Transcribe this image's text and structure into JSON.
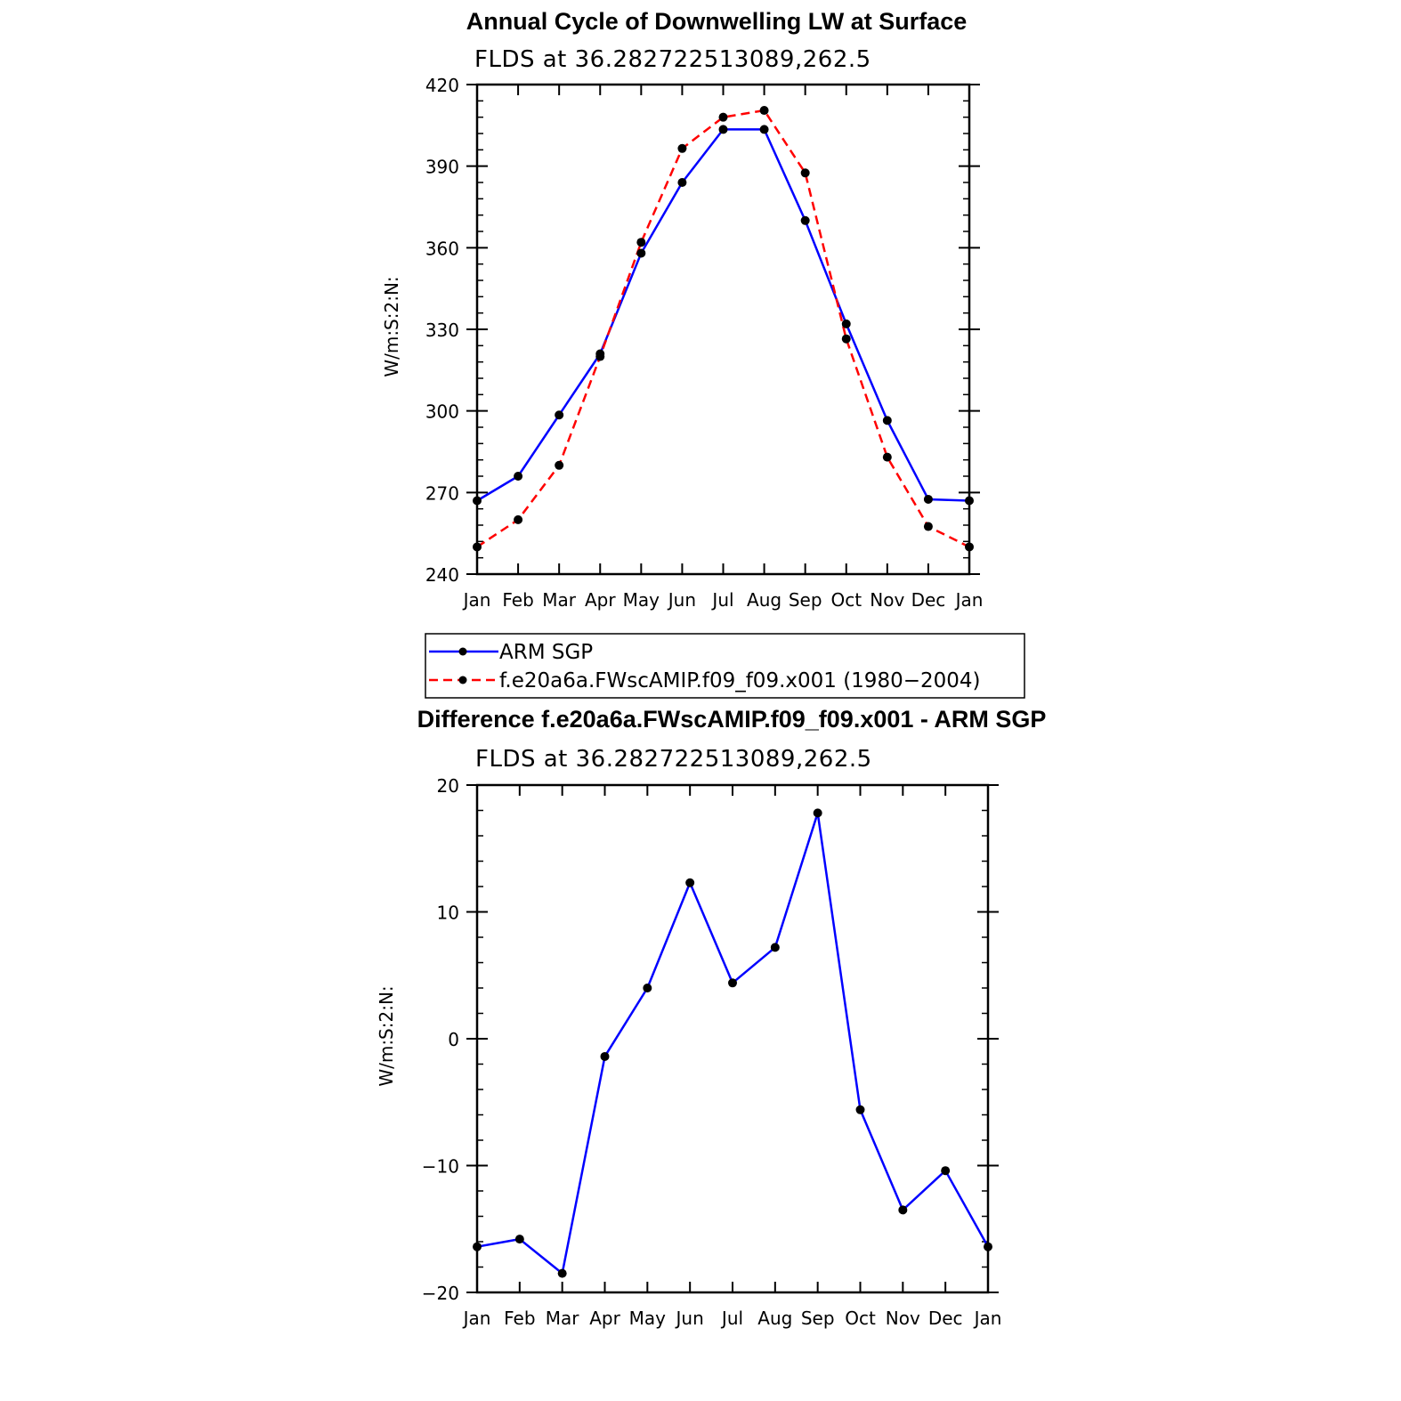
{
  "chart_data": [
    {
      "type": "line",
      "title": "Annual Cycle of Downwelling LW at Surface",
      "subtitle": "FLDS at 36.282722513089,262.5",
      "xlabel": "",
      "ylabel": "W/m:S:2:N:",
      "categories": [
        "Jan",
        "Feb",
        "Mar",
        "Apr",
        "May",
        "Jun",
        "Jul",
        "Aug",
        "Sep",
        "Oct",
        "Nov",
        "Dec",
        "Jan"
      ],
      "ylim": [
        240,
        420
      ],
      "yticks": [
        240,
        270,
        300,
        330,
        360,
        390,
        420
      ],
      "series": [
        {
          "name": "ARM SGP",
          "color": "#0000ff",
          "dash": "solid",
          "values": [
            267,
            276,
            298.5,
            321,
            358,
            384,
            403.5,
            403.5,
            370,
            332,
            296.5,
            267.5,
            267
          ]
        },
        {
          "name": "f.e20a6a.FWscAMIP.f09_f09.x001 (1980−2004)",
          "color": "#ff0000",
          "dash": "dashed",
          "values": [
            250,
            260,
            280,
            320,
            362,
            396.5,
            408,
            410.5,
            387.5,
            326.5,
            283,
            257.5,
            250
          ]
        }
      ],
      "legend": {
        "position": "below",
        "entries": [
          "ARM SGP",
          "f.e20a6a.FWscAMIP.f09_f09.x001 (1980−2004)"
        ]
      }
    },
    {
      "type": "line",
      "title": "Difference f.e20a6a.FWscAMIP.f09_f09.x001 - ARM SGP",
      "subtitle": "FLDS at 36.282722513089,262.5",
      "xlabel": "",
      "ylabel": "W/m:S:2:N:",
      "categories": [
        "Jan",
        "Feb",
        "Mar",
        "Apr",
        "May",
        "Jun",
        "Jul",
        "Aug",
        "Sep",
        "Oct",
        "Nov",
        "Dec",
        "Jan"
      ],
      "ylim": [
        -20,
        20
      ],
      "yticks": [
        -20,
        -10,
        0,
        10,
        20
      ],
      "ytick_labels": [
        "−20",
        "−10",
        "0",
        "10",
        "20"
      ],
      "series": [
        {
          "name": "Difference",
          "color": "#0000ff",
          "dash": "solid",
          "values": [
            -16.4,
            -15.8,
            -18.5,
            -1.4,
            4.0,
            12.3,
            4.4,
            7.2,
            17.8,
            -5.6,
            -13.5,
            -10.4,
            -16.4
          ]
        }
      ]
    }
  ]
}
